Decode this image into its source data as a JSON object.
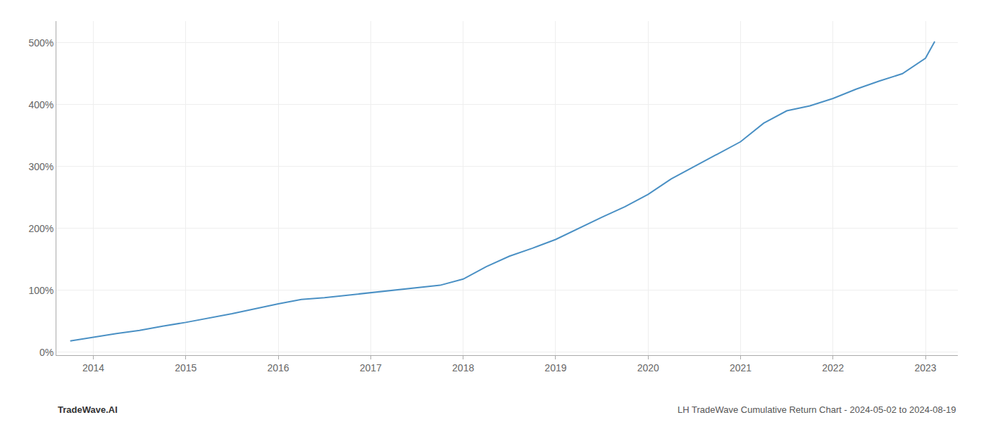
{
  "chart_data": {
    "type": "line",
    "x": [
      2013.75,
      2014.0,
      2014.25,
      2014.5,
      2014.75,
      2015.0,
      2015.25,
      2015.5,
      2015.75,
      2016.0,
      2016.25,
      2016.5,
      2016.75,
      2017.0,
      2017.25,
      2017.5,
      2017.75,
      2018.0,
      2018.25,
      2018.5,
      2018.75,
      2019.0,
      2019.25,
      2019.5,
      2019.75,
      2020.0,
      2020.25,
      2020.5,
      2020.75,
      2021.0,
      2021.25,
      2021.5,
      2021.75,
      2022.0,
      2022.25,
      2022.5,
      2022.75,
      2023.0,
      2023.1
    ],
    "values": [
      18,
      24,
      30,
      35,
      42,
      48,
      55,
      62,
      70,
      78,
      85,
      88,
      92,
      96,
      100,
      104,
      108,
      118,
      138,
      155,
      168,
      182,
      200,
      218,
      235,
      255,
      280,
      300,
      320,
      340,
      370,
      390,
      398,
      410,
      425,
      438,
      450,
      475,
      502
    ],
    "color": "#4a90c4",
    "xlim": [
      2013.6,
      2023.35
    ],
    "ylim": [
      -5,
      535
    ],
    "xticks": [
      2014,
      2015,
      2016,
      2017,
      2018,
      2019,
      2020,
      2021,
      2022,
      2023
    ],
    "yticks": [
      {
        "value": 0,
        "label": "0%"
      },
      {
        "value": 100,
        "label": "100%"
      },
      {
        "value": 200,
        "label": "200%"
      },
      {
        "value": 300,
        "label": "300%"
      },
      {
        "value": 400,
        "label": "400%"
      },
      {
        "value": 500,
        "label": "500%"
      }
    ],
    "grid": true,
    "annotations": [
      "TradeWave.AI",
      "LH TradeWave Cumulative Return Chart - 2024-05-02 to 2024-08-19"
    ]
  }
}
